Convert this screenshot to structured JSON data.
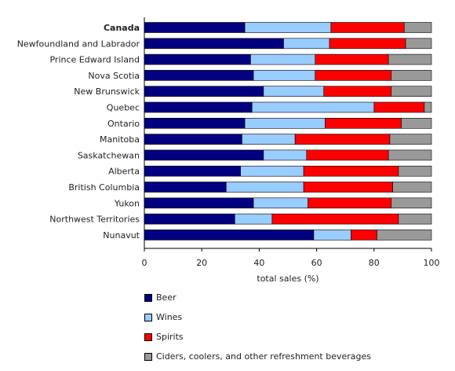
{
  "chart_data": {
    "type": "bar",
    "orientation": "horizontal",
    "stacked": true,
    "categories": [
      "Canada",
      "Newfoundland and Labrador",
      "Prince Edward Island",
      "Nova Scotia",
      "New Brunswick",
      "Quebec",
      "Ontario",
      "Manitoba",
      "Saskatchewan",
      "Alberta",
      "British Columbia",
      "Yukon",
      "Northwest Territories",
      "Nunavut"
    ],
    "bold_categories": [
      "Canada"
    ],
    "series": [
      {
        "name": "Beer",
        "color": "#000080",
        "values": [
          35,
          48.5,
          37,
          38,
          41.5,
          37.5,
          35,
          34,
          41.5,
          33.5,
          28.5,
          38,
          31.5,
          59
        ]
      },
      {
        "name": "Wines",
        "color": "#99ccff",
        "values": [
          30,
          16,
          22.5,
          21.5,
          21,
          42.5,
          28,
          18.5,
          15,
          22,
          27,
          19,
          13,
          13
        ]
      },
      {
        "name": "Spirits",
        "color": "#ff0000",
        "values": [
          25.5,
          26.5,
          25.5,
          26.5,
          23.5,
          17.5,
          26.5,
          33,
          28.5,
          33,
          31,
          29,
          44,
          9
        ]
      },
      {
        "name": "Ciders, coolers, and other refreshment beverages",
        "color": "#999999",
        "values": [
          9.5,
          9,
          15,
          14,
          14,
          2.5,
          10.5,
          14.5,
          15,
          11.5,
          13.5,
          14,
          11.5,
          19
        ]
      }
    ],
    "xlabel": "total sales (%)",
    "ylabel": "",
    "xlim": [
      0,
      100
    ],
    "xticks": [
      "0",
      "20",
      "40",
      "60",
      "80",
      "100"
    ],
    "grid": false,
    "legend_position": "bottom"
  }
}
